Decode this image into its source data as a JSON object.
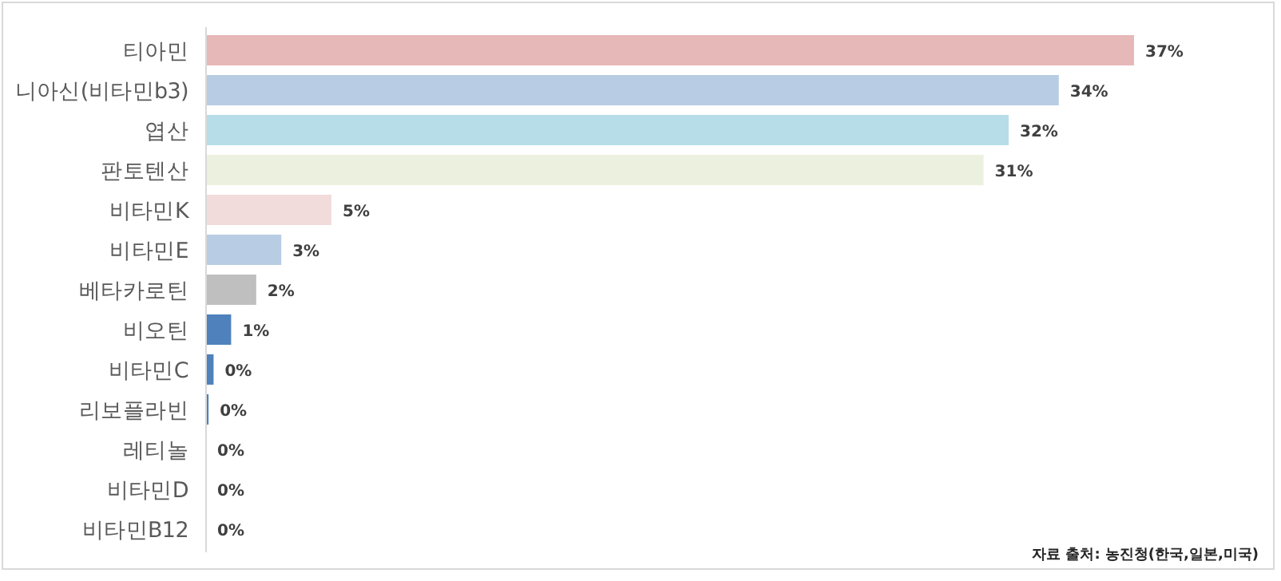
{
  "chart_data": {
    "type": "bar",
    "orientation": "horizontal",
    "categories": [
      "티아민",
      "니아신(비타민b3)",
      "엽산",
      "판토텐산",
      "비타민K",
      "비타민E",
      "베타카로틴",
      "비오틴",
      "비타민C",
      "리보플라빈",
      "레티놀",
      "비타민D",
      "비타민B12"
    ],
    "values": [
      37,
      34,
      32,
      31,
      5,
      3,
      2,
      1,
      0.3,
      0.1,
      0,
      0,
      0
    ],
    "value_labels": [
      "37%",
      "34%",
      "32%",
      "31%",
      "5%",
      "3%",
      "2%",
      "1%",
      "0%",
      "0%",
      "0%",
      "0%",
      "0%"
    ],
    "colors": [
      "#e6b8b7",
      "#b8cce4",
      "#b7dde8",
      "#ebf1de",
      "#f2dcdb",
      "#b8cce4",
      "#bfbfbf",
      "#4f81bd",
      "#4f81bd",
      "#4f81bd",
      "#4f81bd",
      "#4f81bd",
      "#4f81bd"
    ],
    "annotations": [
      "자료 출처: 농진청(한국,일본,미국)"
    ]
  }
}
